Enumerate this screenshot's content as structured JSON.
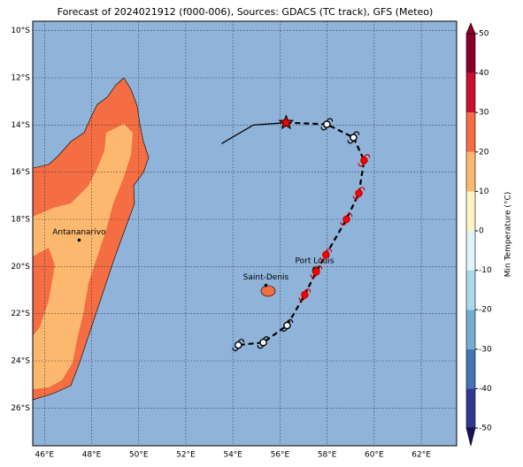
{
  "title": "Forecast of 2024021912 (f000-006), Sources: GDACS (TC track), GFS (Meteo)",
  "lonlim": [
    45.5,
    63.5
  ],
  "latlim": [
    -27.6,
    -9.6
  ],
  "lonticks": [
    {
      "value": 46,
      "label": "46°E"
    },
    {
      "value": 48,
      "label": "48°E"
    },
    {
      "value": 50,
      "label": "50°E"
    },
    {
      "value": 52,
      "label": "52°E"
    },
    {
      "value": 54,
      "label": "54°E"
    },
    {
      "value": 56,
      "label": "56°E"
    },
    {
      "value": 58,
      "label": "58°E"
    },
    {
      "value": 60,
      "label": "60°E"
    },
    {
      "value": 62,
      "label": "62°E"
    }
  ],
  "latticks": [
    {
      "value": -10,
      "label": "10°S"
    },
    {
      "value": -12,
      "label": "12°S"
    },
    {
      "value": -14,
      "label": "14°S"
    },
    {
      "value": -16,
      "label": "16°S"
    },
    {
      "value": -18,
      "label": "18°S"
    },
    {
      "value": -20,
      "label": "20°S"
    },
    {
      "value": -22,
      "label": "22°S"
    },
    {
      "value": -24,
      "label": "24°S"
    },
    {
      "value": -26,
      "label": "26°S"
    }
  ],
  "colorbar": {
    "label": "Min Temperature (°C)",
    "lim": [
      -50,
      50
    ],
    "ticks": [
      50,
      40,
      30,
      20,
      10,
      0,
      -10,
      -20,
      -30,
      -40,
      -50
    ],
    "colors": [
      "#313695",
      "#4575b4",
      "#74add1",
      "#abd9e9",
      "#e0f3f8",
      "#fff3c4",
      "#fdb870",
      "#f46d43",
      "#c8102e",
      "#8b0026"
    ]
  },
  "cities": [
    {
      "name": "Antananarivo",
      "lon": 47.47,
      "lat": -18.88
    },
    {
      "name": "Saint-Denis",
      "lon": 55.4,
      "lat": -20.8
    },
    {
      "name": "Port Louis",
      "lon": 57.47,
      "lat": -20.1
    }
  ],
  "past_track": {
    "lon": [
      53.52,
      54.87,
      56.26
    ],
    "lat": [
      -14.79,
      -14.0,
      -13.9
    ]
  },
  "current": {
    "lon": 56.26,
    "lat": -13.9
  },
  "forecast_track": {
    "lon": [
      56.26,
      57.99,
      59.12,
      59.57,
      59.35,
      58.82,
      57.95,
      57.54,
      57.05,
      56.3,
      55.29,
      54.23
    ],
    "lat": [
      -13.9,
      -13.97,
      -14.53,
      -15.5,
      -16.89,
      -18.0,
      -19.5,
      -20.22,
      -21.2,
      -22.5,
      -23.22,
      -23.33
    ],
    "colors": [
      "#ffffff",
      "#ffffff",
      "#ffffff",
      "#ff0000",
      "#ff0000",
      "#ff0000",
      "#ff0000",
      "#ff0000",
      "#ff0000",
      "#ffffff",
      "#ffffff",
      "#ffffff"
    ]
  }
}
